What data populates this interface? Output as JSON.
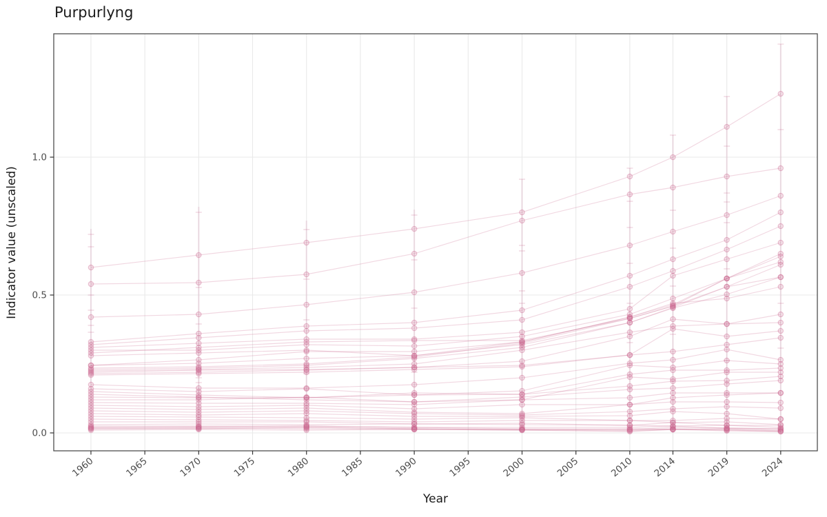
{
  "title": "Purpurlyng",
  "x_axis": {
    "label": "Year",
    "tick_labels": [
      "1960",
      "1965",
      "1970",
      "1975",
      "1980",
      "1985",
      "1990",
      "1995",
      "2000",
      "2005",
      "2010",
      "2014",
      "2019",
      "2024"
    ]
  },
  "y_axis": {
    "label": "Indicator value (unscaled)",
    "tick_labels": [
      "0.0",
      "0.5",
      "1.0"
    ]
  },
  "chart_data": {
    "type": "line",
    "title": "Purpurlyng",
    "xlabel": "Year",
    "ylabel": "Indicator value (unscaled)",
    "legend_position": "none",
    "grid": true,
    "x": [
      1960,
      1970,
      1980,
      1990,
      2000,
      2010,
      2014,
      2019,
      2024
    ],
    "x_ticks": [
      1960,
      1965,
      1970,
      1975,
      1980,
      1985,
      1990,
      1995,
      2000,
      2005,
      2010,
      2014,
      2019,
      2024
    ],
    "y_ticks": [
      0.0,
      0.5,
      1.0
    ],
    "xlim": [
      1956.55,
      2027.4
    ],
    "ylim": [
      -0.065,
      1.4475
    ],
    "series": [
      {
        "values": [
          0.6,
          0.645,
          0.69,
          0.74,
          0.8,
          0.93,
          1.0,
          1.11,
          1.23
        ]
      },
      {
        "values": [
          0.54,
          0.545,
          0.575,
          0.65,
          0.77,
          0.865,
          0.89,
          0.93,
          0.96
        ]
      },
      {
        "values": [
          0.42,
          0.43,
          0.465,
          0.51,
          0.58,
          0.68,
          0.73,
          0.79,
          0.86
        ]
      },
      {
        "values": [
          0.33,
          0.36,
          0.3875,
          0.4,
          0.445,
          0.57,
          0.63,
          0.7,
          0.8
        ]
      },
      {
        "values": [
          0.32,
          0.345,
          0.37,
          0.38,
          0.41,
          0.53,
          0.5875,
          0.665,
          0.75
        ]
      },
      {
        "values": [
          0.31,
          0.325,
          0.34,
          0.34,
          0.365,
          0.45,
          0.57,
          0.63,
          0.69
        ]
      },
      {
        "values": [
          0.3,
          0.3,
          0.32,
          0.315,
          0.35,
          0.43,
          0.4875,
          0.56,
          0.65
        ]
      },
      {
        "values": [
          0.29,
          0.31,
          0.33,
          0.335,
          0.335,
          0.415,
          0.46,
          0.53,
          0.61
        ]
      },
      {
        "values": [
          0.28,
          0.29,
          0.3,
          0.28,
          0.32,
          0.4,
          0.4525,
          0.5025,
          0.565
        ]
      },
      {
        "values": [
          0.245,
          0.265,
          0.295,
          0.295,
          0.33,
          0.42,
          0.47,
          0.4875,
          0.53
        ]
      },
      {
        "values": [
          0.245,
          0.2525,
          0.27,
          0.28,
          0.33,
          0.42,
          0.465,
          0.56,
          0.64
        ]
      },
      {
        "values": [
          0.235,
          0.24,
          0.25,
          0.275,
          0.325,
          0.415,
          0.46,
          0.56,
          0.62
        ]
      },
      {
        "values": [
          0.23,
          0.235,
          0.245,
          0.27,
          0.31,
          0.4,
          0.455,
          0.53,
          0.565
        ]
      },
      {
        "values": [
          0.22,
          0.2275,
          0.23,
          0.2375,
          0.26,
          0.35,
          0.4125,
          0.395,
          0.43
        ]
      },
      {
        "values": [
          0.225,
          0.23,
          0.2375,
          0.25,
          0.3,
          0.365,
          0.3875,
          0.395,
          0.4
        ]
      },
      {
        "values": [
          0.215,
          0.22,
          0.2275,
          0.2375,
          0.245,
          0.2825,
          0.3775,
          0.35,
          0.37
        ]
      },
      {
        "values": [
          0.21,
          0.215,
          0.22,
          0.23,
          0.24,
          0.2825,
          0.295,
          0.32,
          0.345
        ]
      },
      {
        "values": [
          0.175,
          0.1625,
          0.1625,
          0.175,
          0.2,
          0.2525,
          0.265,
          0.3025,
          0.265
        ]
      },
      {
        "values": [
          0.16,
          0.15,
          0.16,
          0.1375,
          0.1525,
          0.245,
          0.2375,
          0.2625,
          0.25
        ]
      },
      {
        "values": [
          0.15,
          0.1375,
          0.1275,
          0.145,
          0.14,
          0.2125,
          0.2275,
          0.2275,
          0.235
        ]
      },
      {
        "values": [
          0.14,
          0.13,
          0.12,
          0.1125,
          0.12,
          0.2025,
          0.195,
          0.22,
          0.22
        ]
      },
      {
        "values": [
          0.13,
          0.1275,
          0.1275,
          0.1375,
          0.14,
          0.17,
          0.1875,
          0.19,
          0.205
        ]
      },
      {
        "values": [
          0.12,
          0.12,
          0.13,
          0.1125,
          0.13,
          0.1575,
          0.1625,
          0.1775,
          0.19
        ]
      },
      {
        "values": [
          0.11,
          0.1075,
          0.1075,
          0.1025,
          0.12,
          0.1275,
          0.145,
          0.145,
          0.145
        ]
      },
      {
        "values": [
          0.1,
          0.095,
          0.1,
          0.0875,
          0.1025,
          0.1025,
          0.1275,
          0.1375,
          0.145
        ]
      },
      {
        "values": [
          0.09,
          0.085,
          0.09,
          0.075,
          0.07,
          0.1025,
          0.1125,
          0.1125,
          0.11
        ]
      },
      {
        "values": [
          0.08,
          0.075,
          0.08,
          0.07,
          0.065,
          0.0775,
          0.0875,
          0.095,
          0.09
        ]
      },
      {
        "values": [
          0.07,
          0.065,
          0.07,
          0.06,
          0.06,
          0.0625,
          0.0775,
          0.07,
          0.05
        ]
      },
      {
        "values": [
          0.06,
          0.0575,
          0.055,
          0.05,
          0.055,
          0.045,
          0.045,
          0.0525,
          0.05
        ]
      },
      {
        "values": [
          0.05,
          0.0475,
          0.045,
          0.04,
          0.045,
          0.045,
          0.0375,
          0.04,
          0.03
        ]
      },
      {
        "values": [
          0.04,
          0.04,
          0.04,
          0.0325,
          0.035,
          0.0275,
          0.0375,
          0.0275,
          0.0275
        ]
      },
      {
        "values": [
          0.03,
          0.0325,
          0.03,
          0.0325,
          0.03,
          0.0275,
          0.025,
          0.0275,
          0.02
        ]
      },
      {
        "values": [
          0.025,
          0.025,
          0.025,
          0.02,
          0.02,
          0.02,
          0.025,
          0.0175,
          0.015
        ]
      },
      {
        "values": [
          0.02,
          0.02,
          0.02,
          0.015,
          0.0125,
          0.015,
          0.0125,
          0.015,
          0.01
        ]
      },
      {
        "values": [
          0.015,
          0.0175,
          0.015,
          0.0125,
          0.01,
          0.0075,
          0.0125,
          0.01,
          0.005
        ]
      },
      {
        "values": [
          0.01,
          0.0125,
          0.01,
          0.0125,
          0.01,
          0.005,
          0.0125,
          0.0075,
          0.005
        ]
      },
      {
        "values": [
          0.015,
          0.015,
          0.02,
          0.015,
          0.0125,
          0.01,
          0.015,
          0.0125,
          0.0075
        ]
      },
      {
        "values": [
          0.02,
          0.0225,
          0.025,
          0.02,
          0.015,
          0.0125,
          0.02,
          0.0175,
          0.015
        ]
      }
    ],
    "column_ranges": [
      {
        "x": 1960,
        "min": 0.005,
        "max": 0.74
      },
      {
        "x": 1970,
        "min": 0.005,
        "max": 0.82
      },
      {
        "x": 1980,
        "min": 0.005,
        "max": 0.77
      },
      {
        "x": 1990,
        "min": 0.005,
        "max": 0.81
      },
      {
        "x": 2000,
        "min": 0.005,
        "max": 0.92
      },
      {
        "x": 2010,
        "min": 0.0,
        "max": 0.96
      },
      {
        "x": 2014,
        "min": 0.0,
        "max": 1.08
      },
      {
        "x": 2019,
        "min": 0.0,
        "max": 1.22
      },
      {
        "x": 2024,
        "min": 0.0,
        "max": 1.41
      }
    ],
    "ghost_ticks": [
      {
        "x": 1960,
        "values": [
          0.72,
          0.675,
          0.5,
          0.445,
          0.39,
          0.365
        ]
      },
      {
        "x": 1970,
        "values": [
          0.8,
          0.5275,
          0.395,
          0.2,
          0.1825
        ]
      },
      {
        "x": 1980,
        "values": [
          0.7375,
          0.5575,
          0.41,
          0.215
        ]
      },
      {
        "x": 1990,
        "values": [
          0.79,
          0.6275,
          0.4525,
          0.2375,
          0.22
        ]
      },
      {
        "x": 2000,
        "values": [
          0.92,
          0.68,
          0.66,
          0.515,
          0.47,
          0.31
        ]
      },
      {
        "x": 2010,
        "values": [
          0.96,
          0.84,
          0.745,
          0.615,
          0.47,
          0.3275
        ]
      },
      {
        "x": 2014,
        "values": [
          1.08,
          0.8075,
          0.67,
          0.5325,
          0.3575
        ]
      },
      {
        "x": 2019,
        "values": [
          1.22,
          1.04,
          0.87,
          0.8375,
          0.7625,
          0.595,
          0.2625
        ]
      },
      {
        "x": 2024,
        "values": [
          1.41,
          1.1,
          0.47,
          0.3075
        ]
      }
    ],
    "style": {
      "series_color": "#C9648C",
      "line_alpha": 0.26,
      "marker_fill_alpha": 0.15,
      "marker_stroke_alpha": 0.36,
      "range_alpha": 0.16,
      "ghost_alpha": 0.2,
      "grid_color": "#E9E9E9",
      "panel_border_color": "#4D4D4D",
      "tick_color": "#333333",
      "tick_label_color": "#4D4D4D",
      "text_color": "#1A1A1A"
    }
  }
}
